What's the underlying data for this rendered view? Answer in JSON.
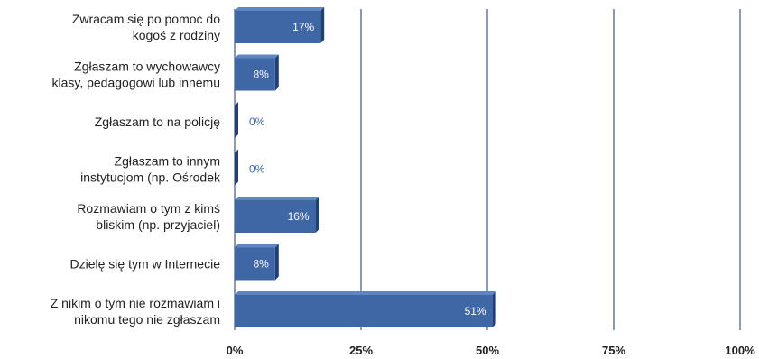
{
  "chart_data": {
    "type": "bar",
    "orientation": "horizontal",
    "categories": [
      [
        "Zwracam się po pomoc do",
        "kogoś z rodziny"
      ],
      [
        "Zgłaszam to wychowawcy",
        "klasy, pedagogowi lub innemu"
      ],
      [
        "Zgłaszam to na policję"
      ],
      [
        "Zgłaszam to innym",
        "instytucjom (np. Ośrodek"
      ],
      [
        "Rozmawiam o tym z kimś",
        "bliskim (np. przyjaciel)"
      ],
      [
        "Dzielę się tym w Internecie"
      ],
      [
        "Z nikim o tym nie rozmawiam i",
        "nikomu tego nie zgłaszam"
      ]
    ],
    "values": [
      17,
      8,
      0,
      0,
      16,
      8,
      51
    ],
    "data_labels": [
      "17%",
      "8%",
      "0%",
      "0%",
      "16%",
      "8%",
      "51%"
    ],
    "xlim": [
      0,
      100
    ],
    "x_ticks": [
      0,
      25,
      50,
      75,
      100
    ],
    "x_tick_labels": [
      "0%",
      "25%",
      "50%",
      "75%",
      "100%"
    ],
    "grid": "vertical",
    "legend": "none",
    "colors": {
      "bar": "#3f66a5",
      "bar_top": "#5f85c2",
      "bar_side": "#1f3f76",
      "grid": "#1f3562",
      "label_inside": "#ffffff",
      "label_outside": "#3f66a5",
      "text": "#222222"
    }
  }
}
